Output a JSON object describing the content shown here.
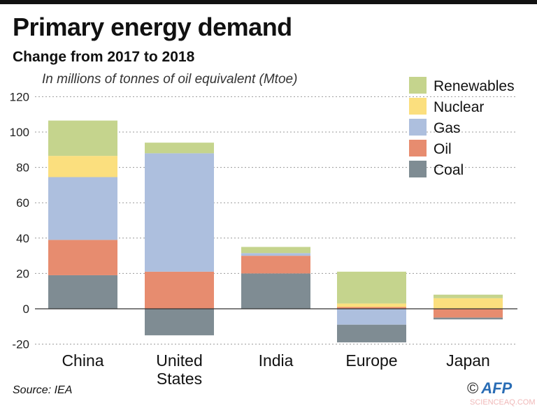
{
  "chart_data": {
    "type": "bar",
    "stacked": true,
    "title": "Primary energy demand",
    "subtitle": "Change from 2017 to 2018",
    "ylabel": "In millions of tonnes of oil equivalent (Mtoe)",
    "categories": [
      "China",
      "United States",
      "India",
      "Europe",
      "Japan"
    ],
    "ylim": [
      -20,
      120
    ],
    "yticks": [
      -20,
      0,
      20,
      40,
      60,
      80,
      100,
      120
    ],
    "grid": true,
    "legend_position": "top-right",
    "series": [
      {
        "name": "Coal",
        "color": "#7f8c93",
        "values": [
          19,
          -15,
          20,
          -10,
          -1
        ]
      },
      {
        "name": "Oil",
        "color": "#e78c6f",
        "values": [
          20,
          21,
          10,
          1,
          -5
        ]
      },
      {
        "name": "Gas",
        "color": "#adbfde",
        "values": [
          35.5,
          67,
          1.5,
          -9,
          0
        ]
      },
      {
        "name": "Nuclear",
        "color": "#fbdf7e",
        "values": [
          12,
          0,
          0,
          2,
          6
        ]
      },
      {
        "name": "Renewables",
        "color": "#c5d48d",
        "values": [
          20,
          6,
          3.5,
          18,
          2
        ]
      }
    ],
    "legend_order": [
      "Renewables",
      "Nuclear",
      "Gas",
      "Oil",
      "Coal"
    ]
  },
  "footer": {
    "source": "Source: IEA",
    "credit_symbol": "©",
    "credit": "AFP",
    "watermark": "SCIENCEAQ.COM"
  }
}
